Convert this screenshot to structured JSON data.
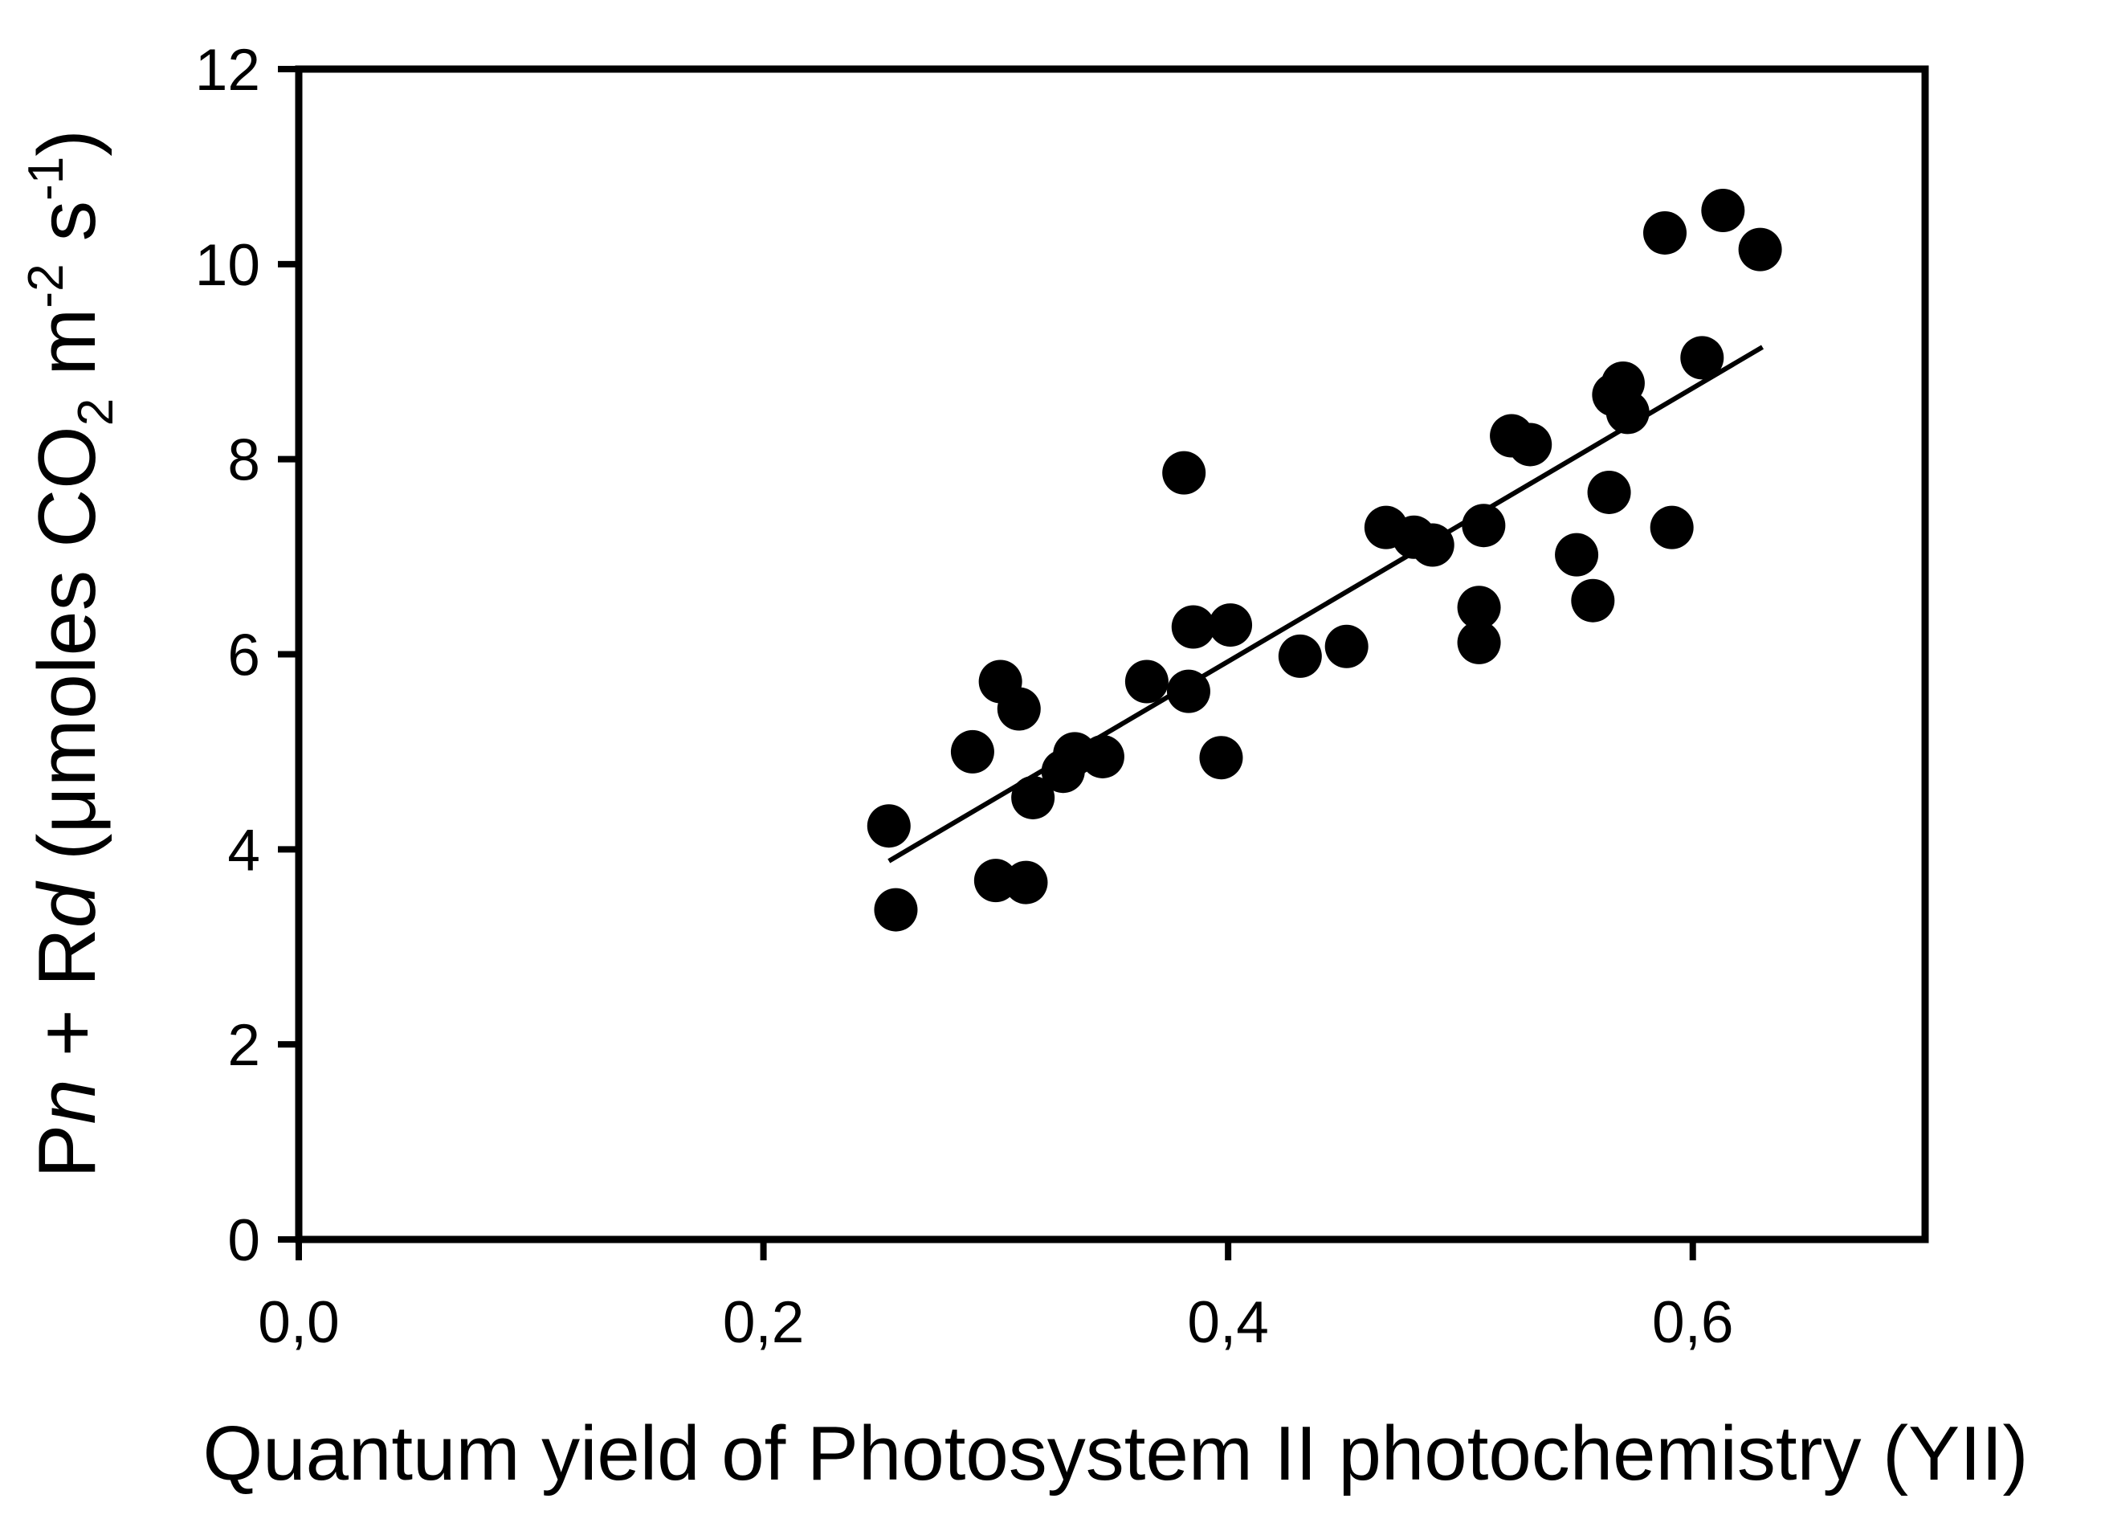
{
  "chart_data": {
    "type": "scatter",
    "xlabel": "Quantum yield of Photosystem II photochemistry (YII)",
    "ylabel_parts": [
      {
        "text": "P"
      },
      {
        "text": "n",
        "italic": true
      },
      {
        "text": " + R"
      },
      {
        "text": "d",
        "italic": true
      },
      {
        "text": " (μmoles CO"
      },
      {
        "text": "2",
        "sub": true
      },
      {
        "text": " m"
      },
      {
        "text": "-2",
        "sup": true
      },
      {
        "text": " s"
      },
      {
        "text": "-1",
        "sup": true
      },
      {
        "text": ")"
      }
    ],
    "xlim": [
      0,
      0.7
    ],
    "ylim": [
      0,
      12
    ],
    "xticks": [
      {
        "value": 0,
        "label": "0,0"
      },
      {
        "value": 0.2,
        "label": "0,2"
      },
      {
        "value": 0.4,
        "label": "0,4"
      },
      {
        "value": 0.6,
        "label": "0,6"
      }
    ],
    "yticks": [
      {
        "value": 0,
        "label": "0"
      },
      {
        "value": 2,
        "label": "2"
      },
      {
        "value": 4,
        "label": "4"
      },
      {
        "value": 6,
        "label": "6"
      },
      {
        "value": 8,
        "label": "8"
      },
      {
        "value": 10,
        "label": "10"
      },
      {
        "value": 12,
        "label": "12"
      }
    ],
    "grid": false,
    "points": [
      {
        "x": 0.254,
        "y": 4.24
      },
      {
        "x": 0.257,
        "y": 3.38
      },
      {
        "x": 0.29,
        "y": 5.0
      },
      {
        "x": 0.3,
        "y": 3.68
      },
      {
        "x": 0.302,
        "y": 5.72
      },
      {
        "x": 0.31,
        "y": 5.44
      },
      {
        "x": 0.313,
        "y": 3.66
      },
      {
        "x": 0.316,
        "y": 4.53
      },
      {
        "x": 0.329,
        "y": 4.8
      },
      {
        "x": 0.334,
        "y": 4.98
      },
      {
        "x": 0.346,
        "y": 4.95
      },
      {
        "x": 0.365,
        "y": 5.72
      },
      {
        "x": 0.381,
        "y": 7.86
      },
      {
        "x": 0.383,
        "y": 5.62
      },
      {
        "x": 0.385,
        "y": 6.28
      },
      {
        "x": 0.397,
        "y": 4.94
      },
      {
        "x": 0.401,
        "y": 6.3
      },
      {
        "x": 0.431,
        "y": 5.98
      },
      {
        "x": 0.451,
        "y": 6.08
      },
      {
        "x": 0.468,
        "y": 7.3
      },
      {
        "x": 0.48,
        "y": 7.2
      },
      {
        "x": 0.488,
        "y": 7.12
      },
      {
        "x": 0.508,
        "y": 6.48
      },
      {
        "x": 0.508,
        "y": 6.12
      },
      {
        "x": 0.51,
        "y": 7.32
      },
      {
        "x": 0.522,
        "y": 8.24
      },
      {
        "x": 0.53,
        "y": 8.15
      },
      {
        "x": 0.55,
        "y": 7.02
      },
      {
        "x": 0.557,
        "y": 6.55
      },
      {
        "x": 0.564,
        "y": 7.66
      },
      {
        "x": 0.566,
        "y": 8.66
      },
      {
        "x": 0.57,
        "y": 8.78
      },
      {
        "x": 0.572,
        "y": 8.48
      },
      {
        "x": 0.588,
        "y": 10.32
      },
      {
        "x": 0.591,
        "y": 7.3
      },
      {
        "x": 0.604,
        "y": 9.04
      },
      {
        "x": 0.613,
        "y": 10.55
      },
      {
        "x": 0.629,
        "y": 10.15
      }
    ],
    "trendline": {
      "x": [
        0.254,
        0.63
      ],
      "y": [
        3.88,
        9.15
      ]
    }
  }
}
